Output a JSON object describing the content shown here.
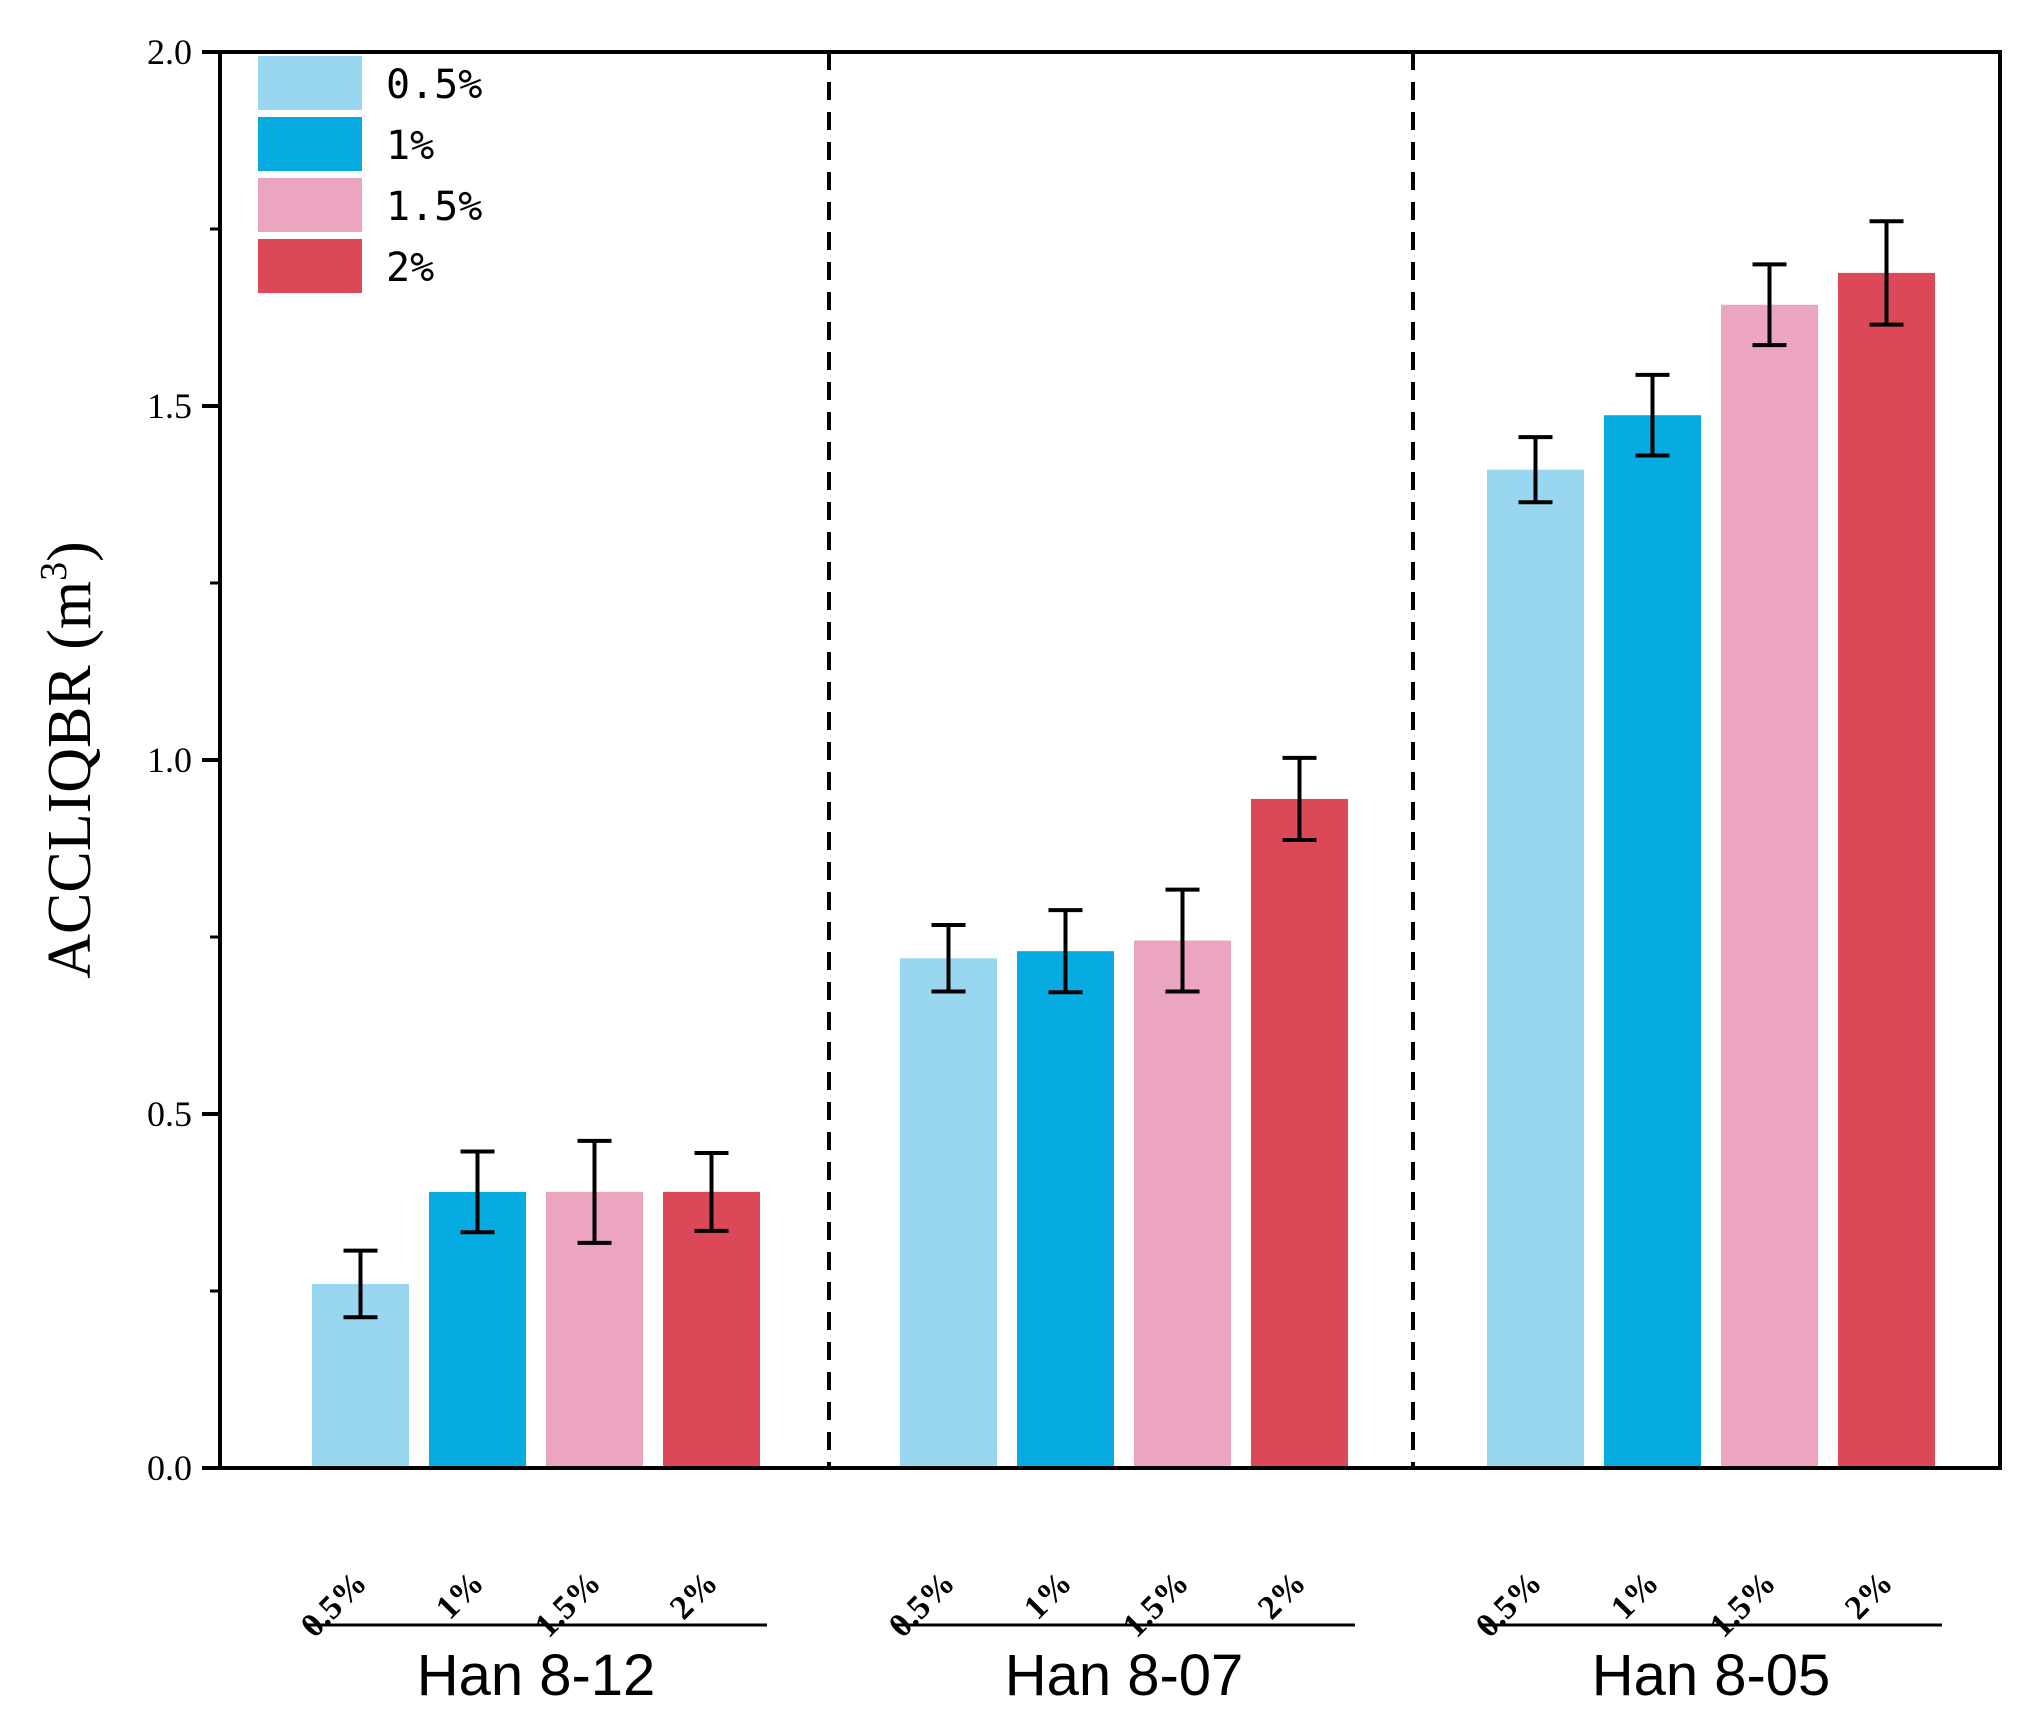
{
  "chart_data": {
    "type": "bar",
    "ylabel_main": "ACCLIQBR (m",
    "ylabel_sup": "3",
    "ylabel_close": ")",
    "ylim": [
      0,
      2.0
    ],
    "yticks": [
      "0.0",
      "0.5",
      "1.0",
      "1.5",
      "2.0"
    ],
    "ytick_values": [
      0,
      0.5,
      1.0,
      1.5,
      2.0
    ],
    "legend_position": "top-left",
    "series": [
      {
        "name": "0.5%",
        "color": "#99d6f0"
      },
      {
        "name": "1%",
        "color": "#06abe1"
      },
      {
        "name": "1.5%",
        "color": "#eba5c1"
      },
      {
        "name": "2%",
        "color": "#db4858"
      }
    ],
    "groups": [
      {
        "name": "Han 8-12",
        "category_labels": [
          "0.5%",
          "1%",
          "1.5%",
          "2%"
        ],
        "values": [
          0.26,
          0.39,
          0.39,
          0.39
        ],
        "errors": [
          0.047,
          0.057,
          0.072,
          0.055
        ]
      },
      {
        "name": "Han 8-07",
        "category_labels": [
          "0.5%",
          "1%",
          "1.5%",
          "2%"
        ],
        "values": [
          0.72,
          0.73,
          0.745,
          0.945
        ],
        "errors": [
          0.047,
          0.058,
          0.072,
          0.058
        ]
      },
      {
        "name": "Han 8-05",
        "category_labels": [
          "0.5%",
          "1%",
          "1.5%",
          "2%"
        ],
        "values": [
          1.41,
          1.487,
          1.643,
          1.688
        ],
        "errors": [
          0.046,
          0.057,
          0.057,
          0.073
        ]
      }
    ]
  }
}
